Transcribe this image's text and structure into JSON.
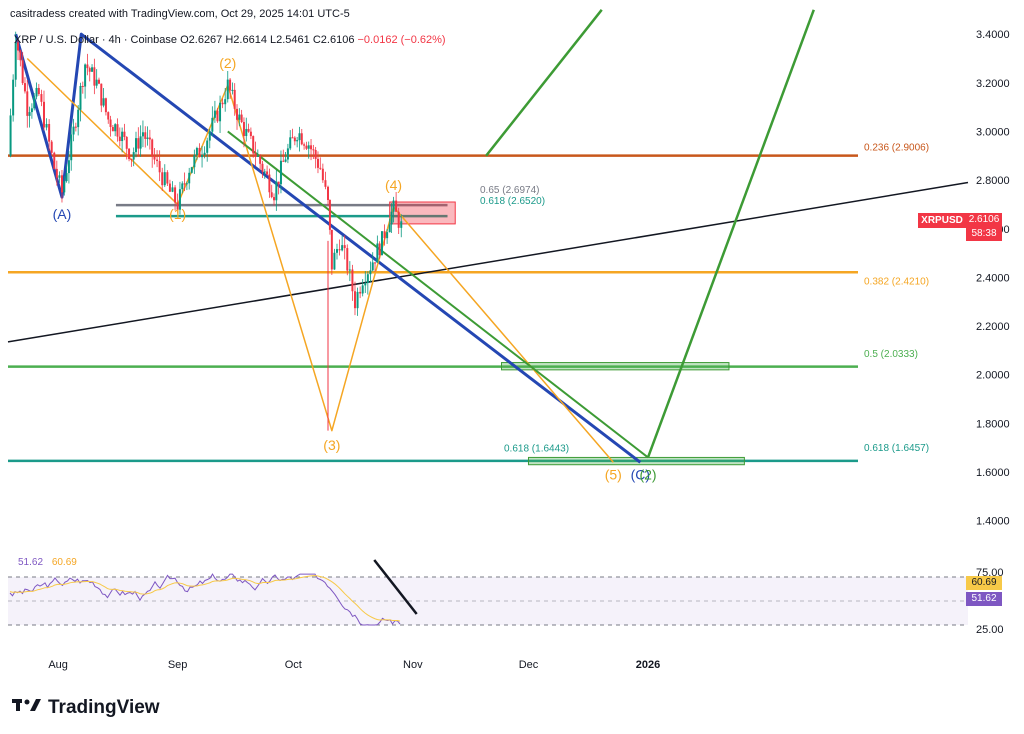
{
  "header": {
    "credit": "casitradess created with TradingView.com, Oct 29, 2025 14:01 UTC-5"
  },
  "legend": {
    "symbol": "XRP / U.S. Dollar · 4h · Coinbase",
    "open": "O2.6267",
    "high": "H2.6614",
    "low": "L2.5461",
    "close": "C2.6106",
    "change": "−0.0162 (−0.62%)"
  },
  "badges": {
    "symbol": "XRPUSD",
    "price": "2.6106",
    "countdown": "58:38",
    "rsi_ma": "60.69",
    "rsi": "51.62"
  },
  "rsi_legend": {
    "rsi": "51.62",
    "ma": "60.69"
  },
  "brand": {
    "name": "TradingView"
  },
  "colors": {
    "up": "#089981",
    "down": "#f23645",
    "wave": "#f5a623",
    "wave_label": "#f5a623",
    "abc": "#2447b3",
    "green": "#3d9b35",
    "fib_orange": "#c8571b",
    "fib_yellow": "#f5a623",
    "fib_green": "#4caf50",
    "fib_teal": "#1b9a8a",
    "gray": "#787b86",
    "rsi": "#7e57c2",
    "rsi_ma": "#f7c948"
  },
  "chart_data": {
    "type": "candlestick",
    "symbol": "XRPUSD",
    "timeframe": "4h",
    "y_axis": {
      "min": 1.4,
      "max": 3.4,
      "ticks": [
        3.4,
        3.2,
        3.0,
        2.8,
        2.6,
        2.4,
        2.2,
        2.0,
        1.8,
        1.6,
        1.4
      ],
      "tick_labels": [
        "3.4000",
        "3.2000",
        "3.0000",
        "2.8000",
        "2.6000",
        "2.4000",
        "2.2000",
        "2.0000",
        "1.8000",
        "1.6000",
        "1.4000"
      ]
    },
    "x_axis": {
      "tick_labels": [
        "Aug",
        "Sep",
        "Oct",
        "Nov",
        "Dec",
        "2026"
      ],
      "tick_dates": [
        "2025-08-01",
        "2025-09-01",
        "2025-10-01",
        "2025-11-01",
        "2025-12-01",
        "2026-01-01"
      ],
      "range": [
        "2025-07-19",
        "2026-03-25"
      ]
    },
    "price_path": [
      [
        "2025-07-19",
        2.9
      ],
      [
        "2025-07-21",
        3.4
      ],
      [
        "2025-07-24",
        3.1
      ],
      [
        "2025-07-27",
        3.15
      ],
      [
        "2025-07-31",
        2.85
      ],
      [
        "2025-08-02",
        2.75
      ],
      [
        "2025-08-05",
        3.0
      ],
      [
        "2025-08-08",
        3.28
      ],
      [
        "2025-08-11",
        3.2
      ],
      [
        "2025-08-14",
        3.05
      ],
      [
        "2025-08-17",
        3.0
      ],
      [
        "2025-08-20",
        2.9
      ],
      [
        "2025-08-23",
        3.0
      ],
      [
        "2025-08-26",
        2.88
      ],
      [
        "2025-08-30",
        2.75
      ],
      [
        "2025-09-01",
        2.7
      ],
      [
        "2025-09-04",
        2.85
      ],
      [
        "2025-09-08",
        2.95
      ],
      [
        "2025-09-12",
        3.1
      ],
      [
        "2025-09-14",
        3.19
      ],
      [
        "2025-09-17",
        3.05
      ],
      [
        "2025-09-20",
        2.95
      ],
      [
        "2025-09-23",
        2.85
      ],
      [
        "2025-09-26",
        2.75
      ],
      [
        "2025-09-29",
        2.9
      ],
      [
        "2025-10-02",
        3.0
      ],
      [
        "2025-10-05",
        2.95
      ],
      [
        "2025-10-08",
        2.85
      ],
      [
        "2025-10-10",
        2.7
      ],
      [
        "2025-10-11",
        2.45
      ],
      [
        "2025-10-13",
        2.55
      ],
      [
        "2025-10-15",
        2.45
      ],
      [
        "2025-10-17",
        2.3
      ],
      [
        "2025-10-19",
        2.4
      ],
      [
        "2025-10-21",
        2.45
      ],
      [
        "2025-10-24",
        2.55
      ],
      [
        "2025-10-26",
        2.65
      ],
      [
        "2025-10-27",
        2.68
      ],
      [
        "2025-10-29",
        2.61
      ]
    ],
    "horizontal_levels": [
      {
        "label": "0.236 (2.9006)",
        "value": 2.9006,
        "color": "fib_orange"
      },
      {
        "label": "0.65 (2.6974)",
        "value": 2.6974,
        "color": "gray"
      },
      {
        "label": "0.618 (2.6520)",
        "value": 2.652,
        "color": "fib_teal"
      },
      {
        "label": "0.382 (2.4210)",
        "value": 2.421,
        "color": "fib_yellow"
      },
      {
        "label": "0.5 (2.0333)",
        "value": 2.0333,
        "color": "fib_green"
      },
      {
        "label": "0.618 (1.6457)",
        "value": 1.6457,
        "color": "fib_teal"
      },
      {
        "label": "0.618 (1.6443)",
        "value": 1.6443,
        "color": "fib_teal"
      }
    ],
    "wave_labels": [
      {
        "text": "(A)",
        "date": "2025-08-02",
        "price": 2.64,
        "color": "abc"
      },
      {
        "text": "(1)",
        "date": "2025-09-01",
        "price": 2.64,
        "color": "wave"
      },
      {
        "text": "(2)",
        "date": "2025-09-14",
        "price": 3.26,
        "color": "wave"
      },
      {
        "text": "(3)",
        "date": "2025-10-11",
        "price": 1.69,
        "color": "wave"
      },
      {
        "text": "(4)",
        "date": "2025-10-27",
        "price": 2.76,
        "color": "wave"
      },
      {
        "text": "(5)",
        "date": "2025-12-23",
        "price": 1.57,
        "color": "wave"
      },
      {
        "text": "(C)",
        "date": "2025-12-30",
        "price": 1.57,
        "color": "abc"
      },
      {
        "text": "(2)",
        "date": "2026-01-01",
        "price": 1.57,
        "color": "green"
      }
    ],
    "rsi": {
      "value": 51.62,
      "ma": 60.69,
      "levels": [
        75.0,
        25.0
      ],
      "level_labels": [
        "75.00",
        "25.00"
      ]
    }
  }
}
